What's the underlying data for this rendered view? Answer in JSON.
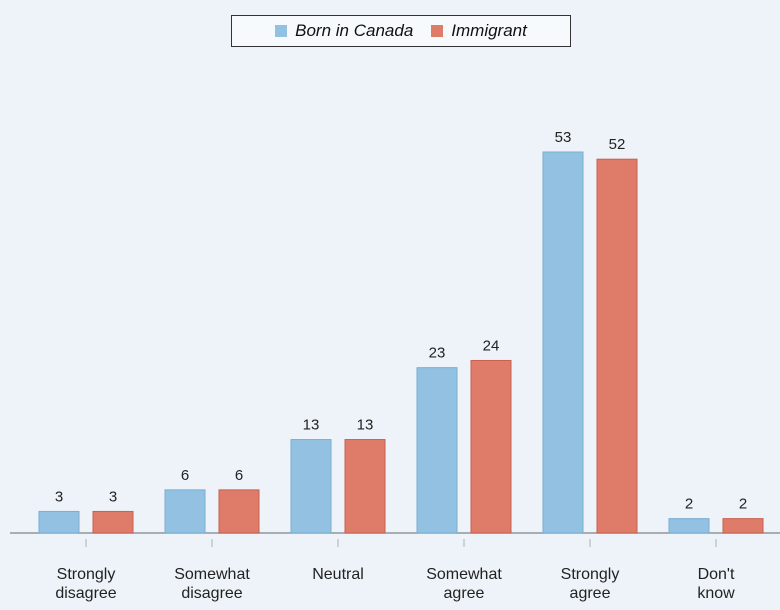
{
  "chart_data": {
    "type": "bar",
    "categories": [
      "Strongly disagree",
      "Somewhat disagree",
      "Neutral",
      "Somewhat agree",
      "Strongly agree",
      "Don't know"
    ],
    "series": [
      {
        "name": "Born in Canada",
        "color": "#93c1e2",
        "values": [
          3,
          6,
          13,
          23,
          53,
          2
        ]
      },
      {
        "name": "Immigrant",
        "color": "#de7b69",
        "values": [
          3,
          6,
          13,
          24,
          52,
          2
        ]
      }
    ],
    "legend": "top"
  }
}
